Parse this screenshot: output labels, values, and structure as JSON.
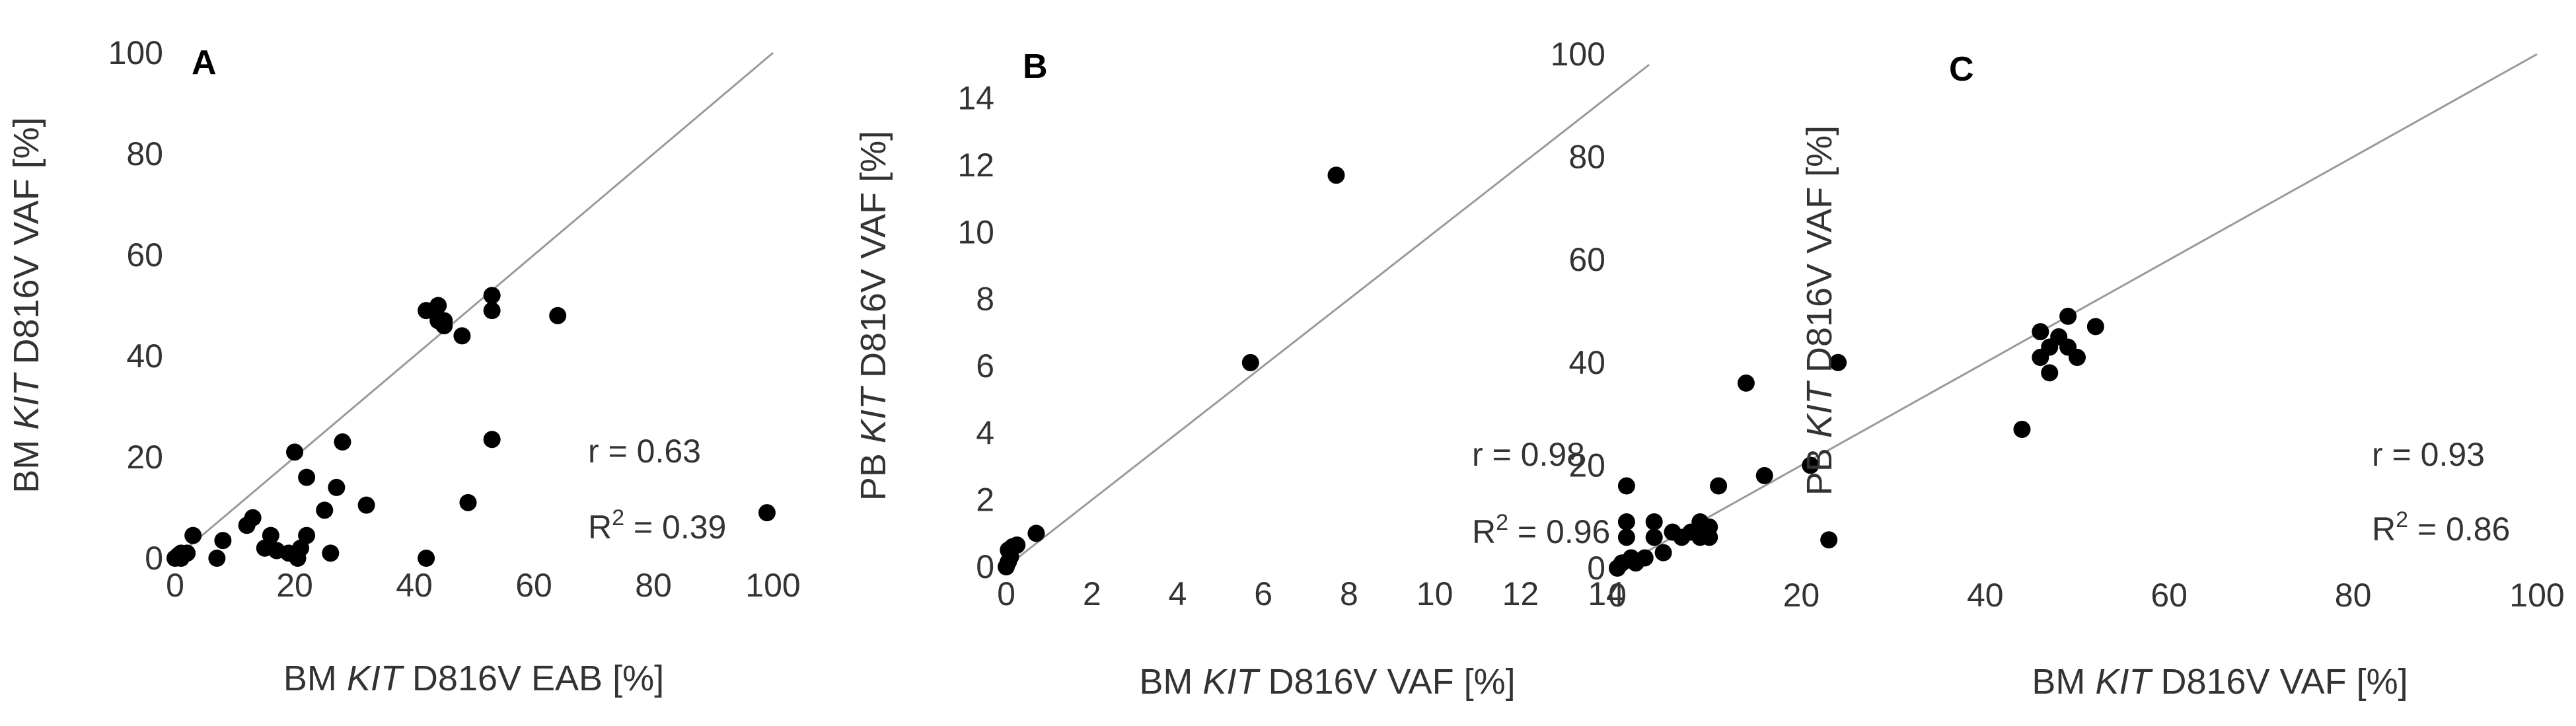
{
  "chart_data": [
    {
      "type": "scatter",
      "panel_label": "A",
      "xlabel_pre": "BM ",
      "xlabel_em": "KIT",
      "xlabel_post": " D816V EAB [%]",
      "ylabel_pre": "BM ",
      "ylabel_em": "KIT",
      "ylabel_post": " D816V VAF [%]",
      "xlim": [
        0,
        100
      ],
      "ylim": [
        0,
        100
      ],
      "xticks": [
        0,
        20,
        40,
        60,
        80,
        100
      ],
      "yticks": [
        0,
        20,
        40,
        60,
        80,
        100
      ],
      "stat_r": "r = 0.63",
      "stat_r2_pre": "R",
      "stat_r2_sup": "2",
      "stat_r2_post": " = 0.39",
      "reference_line": "y = x",
      "points": [
        [
          0,
          0
        ],
        [
          0.5,
          0.5
        ],
        [
          1,
          1
        ],
        [
          1,
          0
        ],
        [
          2,
          1
        ],
        [
          3,
          4.5
        ],
        [
          7,
          0
        ],
        [
          8,
          3.5
        ],
        [
          12,
          6.5
        ],
        [
          13,
          8
        ],
        [
          15,
          2
        ],
        [
          16,
          4.5
        ],
        [
          17,
          1.5
        ],
        [
          19,
          1
        ],
        [
          20,
          21
        ],
        [
          20.5,
          0
        ],
        [
          21,
          2
        ],
        [
          22,
          4.5
        ],
        [
          22,
          16
        ],
        [
          25,
          9.5
        ],
        [
          26,
          1
        ],
        [
          27,
          14
        ],
        [
          28,
          23
        ],
        [
          32,
          10.5
        ],
        [
          42,
          0
        ],
        [
          42,
          49
        ],
        [
          44,
          50
        ],
        [
          44,
          47
        ],
        [
          45,
          46
        ],
        [
          45,
          47
        ],
        [
          48,
          44
        ],
        [
          49,
          11
        ],
        [
          53,
          52
        ],
        [
          53,
          49
        ],
        [
          53,
          23.5
        ],
        [
          64,
          48
        ],
        [
          99,
          9
        ]
      ]
    },
    {
      "type": "scatter",
      "panel_label": "B",
      "xlabel_pre": "BM ",
      "xlabel_em": "KIT",
      "xlabel_post": " D816V VAF [%]",
      "ylabel_pre": "PB ",
      "ylabel_em": "KIT",
      "ylabel_post": " D816V VAF [%]",
      "xlim": [
        0,
        15
      ],
      "ylim": [
        0,
        15
      ],
      "xticks": [
        0,
        2,
        4,
        6,
        8,
        10,
        12,
        14
      ],
      "yticks": [
        0,
        2,
        4,
        6,
        8,
        10,
        12,
        14
      ],
      "stat_r": "r = 0.98",
      "stat_r2_pre": "R",
      "stat_r2_sup": "2",
      "stat_r2_post": " = 0.96",
      "reference_line": "y = x",
      "points": [
        [
          0,
          0
        ],
        [
          0.05,
          0.15
        ],
        [
          0.1,
          0.3
        ],
        [
          0.05,
          0.5
        ],
        [
          0.15,
          0.6
        ],
        [
          0.25,
          0.65
        ],
        [
          0.7,
          1.0
        ],
        [
          5.7,
          6.1
        ],
        [
          7.7,
          11.7
        ]
      ]
    },
    {
      "type": "scatter",
      "panel_label": "C",
      "xlabel_pre": "BM ",
      "xlabel_em": "KIT",
      "xlabel_post": " D816V VAF [%]",
      "ylabel_pre": "PB ",
      "ylabel_em": "KIT",
      "ylabel_post": " D816V VAF [%]",
      "xlim": [
        0,
        100
      ],
      "ylim": [
        0,
        100
      ],
      "xticks": [
        0,
        20,
        40,
        60,
        80,
        100
      ],
      "yticks": [
        0,
        20,
        40,
        60,
        80,
        100
      ],
      "stat_r": "r = 0.93",
      "stat_r2_pre": "R",
      "stat_r2_sup": "2",
      "stat_r2_post": " = 0.86",
      "reference_line": "y = x",
      "points": [
        [
          0,
          0
        ],
        [
          0.5,
          1
        ],
        [
          1,
          16
        ],
        [
          1,
          9
        ],
        [
          1,
          6
        ],
        [
          1.5,
          2
        ],
        [
          2,
          1
        ],
        [
          3,
          2
        ],
        [
          4,
          6
        ],
        [
          4,
          9
        ],
        [
          5,
          3
        ],
        [
          6,
          7
        ],
        [
          7,
          6
        ],
        [
          8,
          7
        ],
        [
          9,
          9
        ],
        [
          9,
          6
        ],
        [
          10,
          8
        ],
        [
          10,
          6
        ],
        [
          11,
          16
        ],
        [
          14,
          36
        ],
        [
          16,
          18
        ],
        [
          21,
          20
        ],
        [
          23,
          5.5
        ],
        [
          24,
          40
        ],
        [
          44,
          27
        ],
        [
          46,
          46
        ],
        [
          46,
          41
        ],
        [
          47,
          43
        ],
        [
          47,
          38
        ],
        [
          48,
          45
        ],
        [
          49,
          49
        ],
        [
          49,
          43
        ],
        [
          50,
          41
        ],
        [
          52,
          47
        ]
      ]
    }
  ]
}
